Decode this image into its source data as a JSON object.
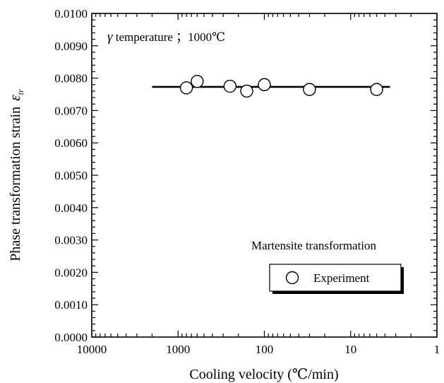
{
  "chart_data": {
    "type": "scatter",
    "title": "",
    "xlabel": "Cooling velocity (℃/min)",
    "ylabel_text": "Phase transformation strain",
    "ylabel_symbol": "ε",
    "ylabel_subscript": "tr",
    "x_scale": "log",
    "x_reversed": true,
    "xlim": [
      10000,
      1
    ],
    "ylim": [
      0.0,
      0.01
    ],
    "x_ticks": [
      10000,
      1000,
      100,
      10,
      1
    ],
    "x_tick_labels": [
      "10000",
      "1000",
      "100",
      "10",
      "1"
    ],
    "y_ticks": [
      0.0,
      0.001,
      0.002,
      0.003,
      0.004,
      0.005,
      0.006,
      0.007,
      0.008,
      0.009,
      0.01
    ],
    "y_tick_labels": [
      "0.0000",
      "0.0010",
      "0.0020",
      "0.0030",
      "0.0040",
      "0.0050",
      "0.0060",
      "0.0070",
      "0.0080",
      "0.0090",
      "0.0100"
    ],
    "grid": false,
    "annotation_gamma_symbol": "γ",
    "annotation_gamma_text": " temperature ；1000℃",
    "annotation_transformation": "Martensite transformation",
    "legend_position": "bottom-right",
    "series": [
      {
        "name": "Experiment",
        "kind": "scatter",
        "marker": "open-circle",
        "x": [
          800,
          600,
          250,
          160,
          100,
          30,
          5
        ],
        "y": [
          0.0077,
          0.0079,
          0.00775,
          0.0076,
          0.0078,
          0.00765,
          0.00765
        ]
      },
      {
        "kind": "line",
        "x": [
          2000,
          3.5
        ],
        "y": [
          0.00773,
          0.00773
        ]
      }
    ]
  }
}
